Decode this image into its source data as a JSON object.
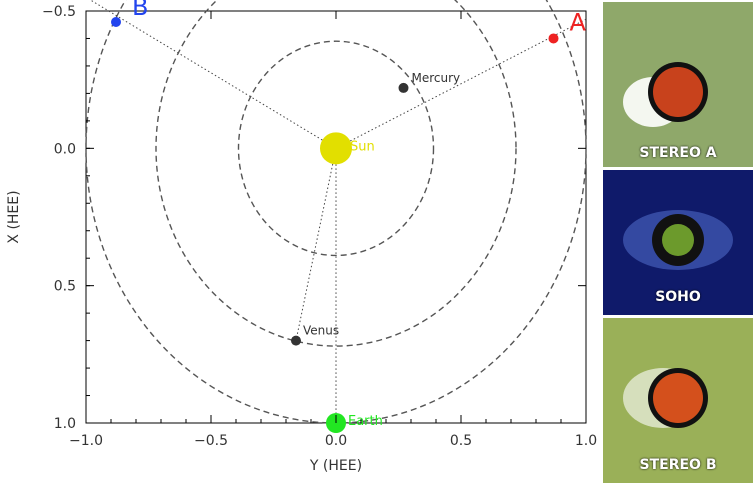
{
  "chart_data": {
    "type": "scatter",
    "xlabel": "Y (HEE)",
    "ylabel": "X (HEE)",
    "xlim": [
      -1.0,
      1.0
    ],
    "ylim": [
      -0.5,
      1.0
    ],
    "y_inverted": true,
    "x_ticks": [
      -1.0,
      -0.5,
      0.0,
      0.5,
      1.0
    ],
    "x_tick_labels": [
      "−1.0",
      "−0.5",
      "0.0",
      "0.5",
      "1.0"
    ],
    "y_ticks": [
      -0.5,
      0.0,
      0.5,
      1.0
    ],
    "y_tick_labels": [
      "−0.5",
      "0.0",
      "0.5",
      "1.0"
    ],
    "orbits": [
      {
        "name": "Mercury",
        "radius": 0.39
      },
      {
        "name": "Venus",
        "radius": 0.72
      },
      {
        "name": "Earth",
        "radius": 1.0
      }
    ],
    "bodies": [
      {
        "label": "Sun",
        "x": 0.0,
        "y": 0.0,
        "color": "#e2df00"
      },
      {
        "label": "Mercury",
        "x": 0.27,
        "y": -0.22,
        "color": "#333333"
      },
      {
        "label": "Venus",
        "x": -0.16,
        "y": 0.7,
        "color": "#333333"
      },
      {
        "label": "Earth",
        "x": 0.0,
        "y": 1.0,
        "color": "#22e622"
      },
      {
        "label": "A",
        "x": 0.87,
        "y": -0.4,
        "color": "#ee2222"
      },
      {
        "label": "B",
        "x": -0.88,
        "y": -0.46,
        "color": "#2244ee"
      }
    ]
  },
  "panels": [
    {
      "label": "STEREO A",
      "bg": "#8fa86a",
      "disk": "#c8421c",
      "halo": "#ffffff"
    },
    {
      "label": "SOHO",
      "bg": "#0f1a6a",
      "disk": "#6c9a2c",
      "halo": "#d8e4ff"
    },
    {
      "label": "STEREO B",
      "bg": "#9ab058",
      "disk": "#d4501c",
      "halo": "#ffffff"
    }
  ]
}
